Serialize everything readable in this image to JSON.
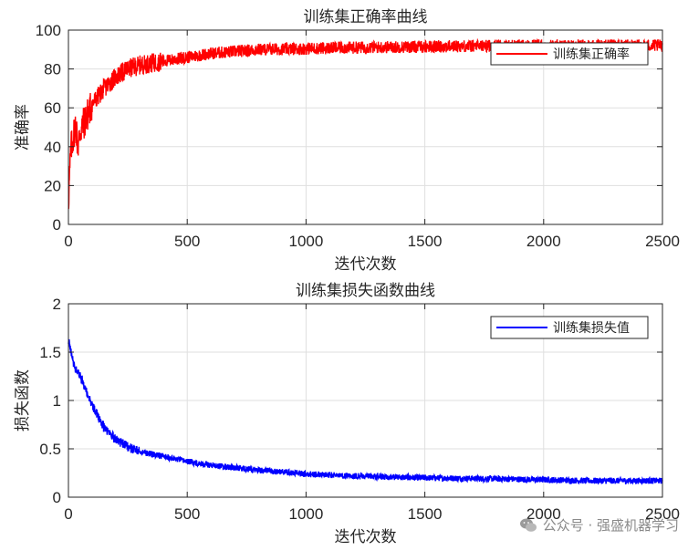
{
  "chart_data": [
    {
      "type": "line",
      "title": "训练集正确率曲线",
      "xlabel": "迭代次数",
      "ylabel": "准确率",
      "xlim": [
        0,
        2500
      ],
      "ylim": [
        0,
        100
      ],
      "xticks": [
        0,
        500,
        1000,
        1500,
        2000,
        2500
      ],
      "yticks": [
        0,
        20,
        40,
        60,
        80,
        100
      ],
      "grid": true,
      "legend_position": "top-right",
      "series": [
        {
          "name": "训练集正确率",
          "color": "#ff0000",
          "x": [
            0,
            10,
            20,
            30,
            40,
            50,
            75,
            100,
            150,
            200,
            250,
            300,
            400,
            500,
            600,
            700,
            800,
            1000,
            1200,
            1500,
            1800,
            2000,
            2200,
            2500
          ],
          "values": [
            12,
            38,
            45,
            52,
            40,
            48,
            55,
            62,
            70,
            76,
            80,
            82,
            84,
            86,
            88,
            89,
            90,
            90.5,
            91,
            91.5,
            92,
            92,
            92,
            92
          ]
        }
      ]
    },
    {
      "type": "line",
      "title": "训练集损失函数曲线",
      "xlabel": "迭代次数",
      "ylabel": "损失函数",
      "xlim": [
        0,
        2500
      ],
      "ylim": [
        0,
        2
      ],
      "xticks": [
        0,
        500,
        1000,
        1500,
        2000,
        2500
      ],
      "yticks": [
        0,
        0.5,
        1,
        1.5,
        2
      ],
      "grid": true,
      "legend_position": "top-right",
      "series": [
        {
          "name": "训练集损失值",
          "color": "#0000ff",
          "x": [
            0,
            10,
            25,
            50,
            75,
            100,
            150,
            200,
            250,
            300,
            400,
            500,
            600,
            800,
            1000,
            1200,
            1500,
            1800,
            2000,
            2200,
            2500
          ],
          "values": [
            1.62,
            1.5,
            1.35,
            1.25,
            1.1,
            0.95,
            0.72,
            0.6,
            0.52,
            0.47,
            0.42,
            0.37,
            0.33,
            0.28,
            0.24,
            0.22,
            0.2,
            0.19,
            0.18,
            0.17,
            0.17
          ]
        }
      ]
    }
  ],
  "watermark": {
    "icon": "wechat-icon",
    "text": "公众号 · 强盛机器学习"
  }
}
